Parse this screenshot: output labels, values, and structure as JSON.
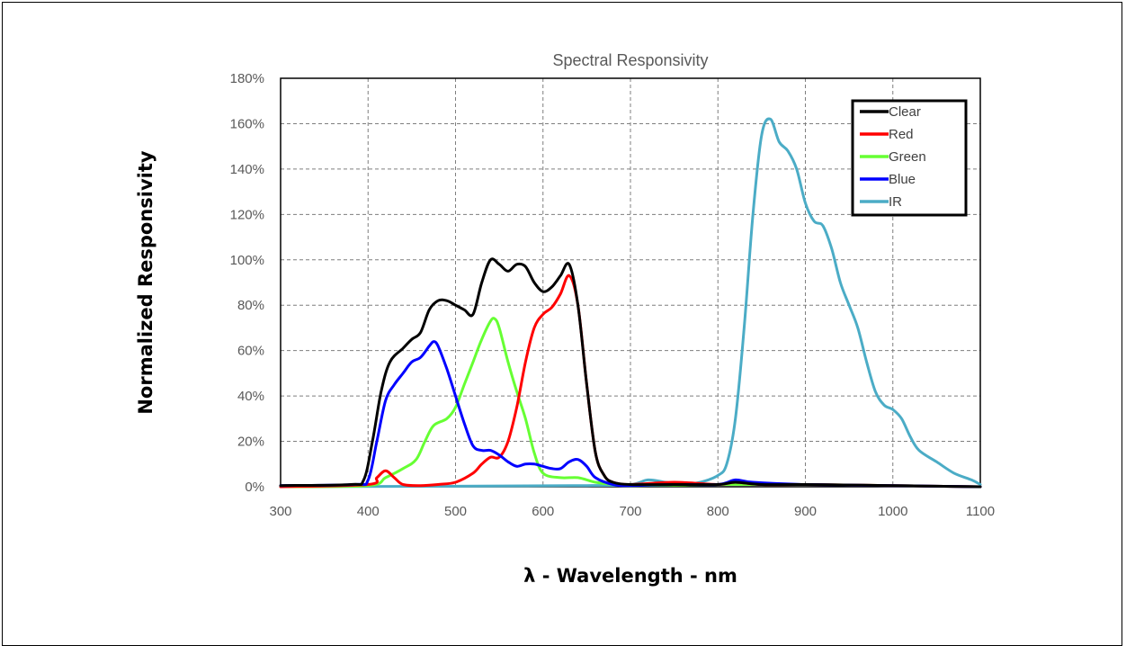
{
  "chart_data": {
    "type": "line",
    "title": "Spectral Responsivity",
    "xlabel": "λ - Wavelength - nm",
    "ylabel": "Normalized Responsivity",
    "xlim": [
      300,
      1100
    ],
    "ylim": [
      0,
      180
    ],
    "xticks": [
      300,
      400,
      500,
      600,
      700,
      800,
      900,
      1000,
      1100
    ],
    "yticks": [
      0,
      20,
      40,
      60,
      80,
      100,
      120,
      140,
      160,
      180
    ],
    "ytick_labels": [
      "0%",
      "20%",
      "40%",
      "60%",
      "80%",
      "100%",
      "120%",
      "140%",
      "160%",
      "180%"
    ],
    "grid": true,
    "legend_position": "top-right",
    "series": [
      {
        "name": "Clear",
        "color": "#000000",
        "x": [
          300,
          380,
          395,
          405,
          415,
          425,
          440,
          450,
          460,
          470,
          480,
          490,
          500,
          510,
          520,
          530,
          540,
          550,
          560,
          570,
          580,
          590,
          600,
          610,
          620,
          630,
          640,
          650,
          660,
          670,
          680,
          700,
          750,
          800,
          820,
          850,
          900,
          1000,
          1100
        ],
        "y": [
          0.5,
          1,
          3,
          20,
          42,
          55,
          61,
          65,
          68,
          78,
          82,
          82,
          80,
          78,
          76,
          90,
          100,
          98,
          95,
          98,
          97,
          90,
          86,
          88,
          93,
          98,
          80,
          45,
          15,
          5,
          2,
          1,
          1,
          1,
          2,
          1,
          1,
          0.5,
          0
        ]
      },
      {
        "name": "Red",
        "color": "#ff0000",
        "x": [
          300,
          400,
          410,
          420,
          430,
          440,
          460,
          480,
          500,
          520,
          530,
          540,
          550,
          560,
          570,
          580,
          590,
          600,
          610,
          620,
          630,
          640,
          650,
          660,
          670,
          680,
          700,
          750,
          800,
          820,
          850,
          900,
          1000,
          1100
        ],
        "y": [
          0,
          1,
          4,
          7,
          4,
          1,
          0.5,
          1,
          2,
          6,
          10,
          13,
          13,
          20,
          35,
          55,
          70,
          76,
          79,
          85,
          93,
          80,
          45,
          15,
          5,
          2,
          1,
          2,
          1,
          2,
          1,
          1,
          0.5,
          0
        ]
      },
      {
        "name": "Green",
        "color": "#66ff33",
        "x": [
          300,
          400,
          420,
          440,
          455,
          465,
          475,
          490,
          500,
          510,
          520,
          530,
          540,
          545,
          550,
          560,
          570,
          580,
          590,
          600,
          620,
          640,
          660,
          680,
          700,
          800,
          850,
          900,
          1000,
          1100
        ],
        "y": [
          0,
          0.5,
          4,
          8,
          12,
          20,
          27,
          30,
          35,
          45,
          55,
          65,
          73,
          74,
          70,
          55,
          42,
          30,
          15,
          6,
          4,
          4,
          2,
          1,
          0.5,
          1,
          1,
          1,
          0.5,
          0
        ]
      },
      {
        "name": "Blue",
        "color": "#0000ff",
        "x": [
          300,
          385,
          400,
          410,
          420,
          430,
          440,
          450,
          460,
          470,
          475,
          480,
          490,
          500,
          510,
          520,
          530,
          540,
          550,
          560,
          570,
          580,
          590,
          600,
          610,
          620,
          630,
          640,
          650,
          660,
          680,
          700,
          750,
          800,
          820,
          840,
          900,
          1000,
          1100
        ],
        "y": [
          0.5,
          1,
          3,
          20,
          38,
          45,
          50,
          55,
          57,
          62,
          64,
          62,
          52,
          40,
          28,
          18,
          16,
          16,
          14,
          11,
          9,
          10,
          10,
          9,
          8,
          8,
          11,
          12,
          9,
          4,
          1,
          0.5,
          1,
          1,
          3,
          2,
          1,
          0.5,
          0
        ]
      },
      {
        "name": "IR",
        "color": "#4bacc6",
        "x": [
          300,
          650,
          700,
          720,
          740,
          760,
          780,
          800,
          810,
          820,
          830,
          840,
          850,
          860,
          870,
          880,
          890,
          900,
          910,
          920,
          930,
          940,
          950,
          960,
          970,
          980,
          990,
          1000,
          1010,
          1020,
          1030,
          1050,
          1070,
          1090,
          1100
        ],
        "y": [
          0,
          0.5,
          1,
          3,
          2,
          1,
          2,
          5,
          10,
          30,
          70,
          120,
          155,
          162,
          152,
          148,
          140,
          125,
          117,
          115,
          105,
          90,
          80,
          70,
          55,
          42,
          36,
          34,
          30,
          22,
          16,
          11,
          6,
          3,
          1
        ]
      }
    ]
  }
}
